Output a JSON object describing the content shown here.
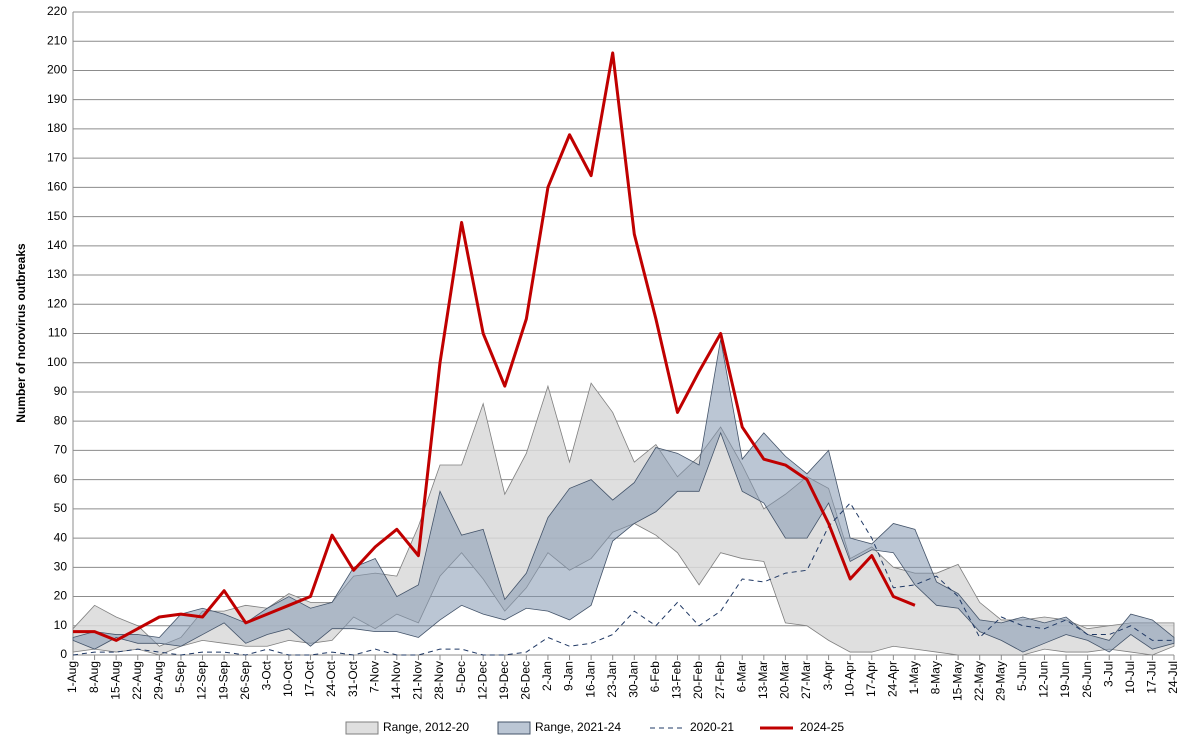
{
  "chart_data": {
    "type": "line",
    "ylabel": "Number of norovirus outbreaks",
    "categories": [
      "1-Aug",
      "8-Aug",
      "15-Aug",
      "22-Aug",
      "29-Aug",
      "5-Sep",
      "12-Sep",
      "19-Sep",
      "26-Sep",
      "3-Oct",
      "10-Oct",
      "17-Oct",
      "24-Oct",
      "31-Oct",
      "7-Nov",
      "14-Nov",
      "21-Nov",
      "28-Nov",
      "5-Dec",
      "12-Dec",
      "19-Dec",
      "26-Dec",
      "2-Jan",
      "9-Jan",
      "16-Jan",
      "23-Jan",
      "30-Jan",
      "6-Feb",
      "13-Feb",
      "20-Feb",
      "27-Feb",
      "6-Mar",
      "13-Mar",
      "20-Mar",
      "27-Mar",
      "3-Apr",
      "10-Apr",
      "17-Apr",
      "24-Apr",
      "1-May",
      "8-May",
      "15-May",
      "22-May",
      "29-May",
      "5-Jun",
      "12-Jun",
      "19-Jun",
      "26-Jun",
      "3-Jul",
      "10-Jul",
      "17-Jul",
      "24-Jul"
    ],
    "ranges": [
      {
        "name": "Range, 2012-20",
        "color": "#d9d9d9",
        "edge": "#7f7f7f",
        "high": [
          9,
          17,
          13,
          10,
          3,
          6,
          15,
          15,
          17,
          16,
          21,
          18,
          18,
          27,
          28,
          27,
          44,
          65,
          65,
          86,
          55,
          69,
          92,
          66,
          93,
          83,
          66,
          72,
          61,
          68,
          78,
          65,
          50,
          55,
          61,
          57,
          33,
          37,
          30,
          28,
          28,
          31,
          18,
          12,
          12,
          13,
          12,
          9,
          10,
          11,
          11,
          11
        ],
        "low": [
          1,
          2,
          1,
          2,
          0,
          3,
          5,
          4,
          3,
          3,
          5,
          4,
          5,
          13,
          9,
          14,
          11,
          27,
          35,
          26,
          15,
          23,
          35,
          29,
          33,
          42,
          45,
          41,
          35,
          24,
          35,
          33,
          32,
          11,
          10,
          5,
          1,
          1,
          3,
          2,
          1,
          0,
          0,
          0,
          0,
          2,
          1,
          1,
          2,
          1,
          0,
          3
        ]
      },
      {
        "name": "Range, 2021-24",
        "color": "#8497b0",
        "edge": "#44546a",
        "high": [
          6,
          8,
          7,
          7,
          6,
          14,
          16,
          14,
          11,
          16,
          20,
          16,
          18,
          30,
          33,
          20,
          24,
          56,
          41,
          43,
          19,
          28,
          47,
          57,
          60,
          53,
          59,
          71,
          69,
          65,
          108,
          67,
          76,
          68,
          62,
          70,
          40,
          38,
          45,
          43,
          25,
          21,
          12,
          11,
          13,
          11,
          13,
          7,
          5,
          14,
          12,
          6
        ],
        "low": [
          5,
          2,
          6,
          4,
          4,
          3,
          7,
          11,
          4,
          7,
          9,
          3,
          9,
          9,
          8,
          8,
          6,
          12,
          17,
          14,
          12,
          16,
          15,
          12,
          17,
          39,
          45,
          49,
          56,
          56,
          76,
          56,
          52,
          40,
          40,
          52,
          32,
          36,
          35,
          24,
          17,
          16,
          8,
          5,
          1,
          4,
          7,
          5,
          1,
          7,
          2,
          4
        ]
      }
    ],
    "series": [
      {
        "name": "2020-21",
        "color": "#1f3864",
        "dashed": true,
        "values": [
          0,
          1,
          1,
          2,
          1,
          0,
          1,
          1,
          0,
          2,
          0,
          0,
          1,
          0,
          2,
          0,
          0,
          2,
          2,
          0,
          0,
          1,
          6,
          3,
          4,
          7,
          15,
          10,
          18,
          10,
          15,
          26,
          25,
          28,
          29,
          44,
          52,
          40,
          23,
          24,
          27,
          20,
          6,
          13,
          10,
          9,
          12,
          7,
          7,
          10,
          5,
          5
        ]
      },
      {
        "name": "2024-25",
        "color": "#c00000",
        "dashed": false,
        "values": [
          8,
          8,
          5,
          9,
          13,
          14,
          13,
          22,
          11,
          14,
          17,
          20,
          41,
          29,
          37,
          43,
          34,
          100,
          148,
          110,
          92,
          115,
          160,
          178,
          164,
          206,
          144,
          115,
          83,
          97,
          110,
          78,
          67,
          65,
          60,
          45,
          26,
          34,
          20,
          17,
          null,
          null,
          null,
          null,
          null,
          null,
          null,
          null,
          null,
          null,
          null,
          null
        ]
      }
    ],
    "ylim": [
      0,
      220
    ],
    "yticks": [
      0,
      10,
      20,
      30,
      40,
      50,
      60,
      70,
      80,
      90,
      100,
      110,
      120,
      130,
      140,
      150,
      160,
      170,
      180,
      190,
      200,
      210,
      220
    ],
    "grid": true
  }
}
